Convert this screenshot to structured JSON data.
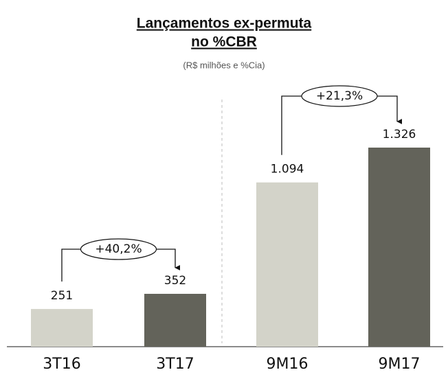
{
  "chart_data": {
    "type": "bar",
    "title": [
      "Lançamentos ex-permuta",
      "no %CBR"
    ],
    "subtitle": "(R$ milhões e %Cia)",
    "categories": [
      "3T16",
      "3T17",
      "9M16",
      "9M17"
    ],
    "values": [
      251,
      352,
      1094,
      1326
    ],
    "value_labels": [
      "251",
      "352",
      "1.094",
      "1.326"
    ],
    "colors": [
      "#d3d3c9",
      "#63635a",
      "#d3d3c9",
      "#63635a"
    ],
    "annotations": [
      "+40,2%",
      "+21,3%"
    ]
  }
}
